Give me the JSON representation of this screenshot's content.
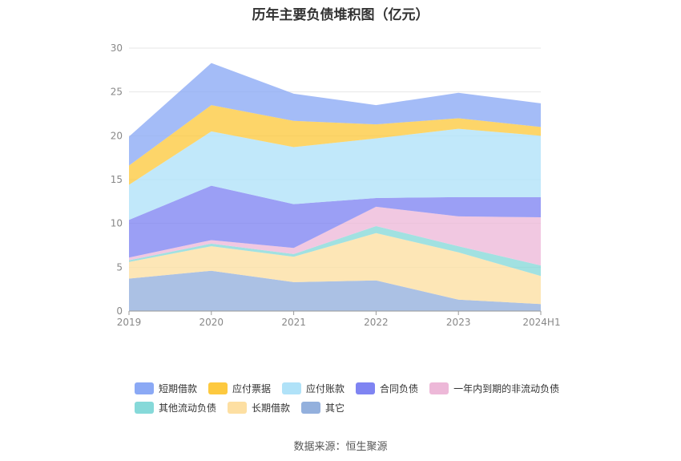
{
  "title": "历年主要负债堆积图（亿元）",
  "source": "数据来源：恒生聚源",
  "chart_data": {
    "type": "area",
    "stacked": true,
    "title": "历年主要负债堆积图（亿元）",
    "categories": [
      "2019",
      "2020",
      "2021",
      "2022",
      "2023",
      "2024H1"
    ],
    "ylim": [
      0,
      30
    ],
    "yticks": [
      0,
      5,
      10,
      15,
      20,
      25,
      30
    ],
    "grid": true,
    "legend_position": "bottom",
    "series": [
      {
        "name": "其它",
        "color": "#93b0dd",
        "values": [
          3.7,
          4.6,
          3.3,
          3.5,
          1.3,
          0.8
        ]
      },
      {
        "name": "长期借款",
        "color": "#fddfa2",
        "values": [
          1.9,
          2.8,
          2.9,
          5.4,
          5.4,
          3.2
        ]
      },
      {
        "name": "其他流动负债",
        "color": "#86d9d9",
        "values": [
          0.2,
          0.3,
          0.3,
          0.8,
          0.7,
          1.2
        ]
      },
      {
        "name": "一年内到期的非流动负债",
        "color": "#edb8d8",
        "values": [
          0.3,
          0.4,
          0.7,
          2.2,
          3.4,
          5.5
        ]
      },
      {
        "name": "合同负债",
        "color": "#7f84f2",
        "values": [
          4.3,
          6.2,
          5.0,
          1.0,
          2.2,
          2.3
        ]
      },
      {
        "name": "应付账款",
        "color": "#b0e2f8",
        "values": [
          4.0,
          6.2,
          6.5,
          6.8,
          7.8,
          7.0
        ]
      },
      {
        "name": "应付票据",
        "color": "#fdc93f",
        "values": [
          2.2,
          3.0,
          3.0,
          1.6,
          1.2,
          1.0
        ]
      },
      {
        "name": "短期借款",
        "color": "#8ba9f5",
        "values": [
          3.3,
          4.8,
          3.1,
          2.2,
          2.9,
          2.7
        ]
      }
    ],
    "legend_order": [
      "短期借款",
      "应付票据",
      "应付账款",
      "合同负债",
      "一年内到期的非流动负债",
      "其他流动负债",
      "长期借款",
      "其它"
    ]
  }
}
